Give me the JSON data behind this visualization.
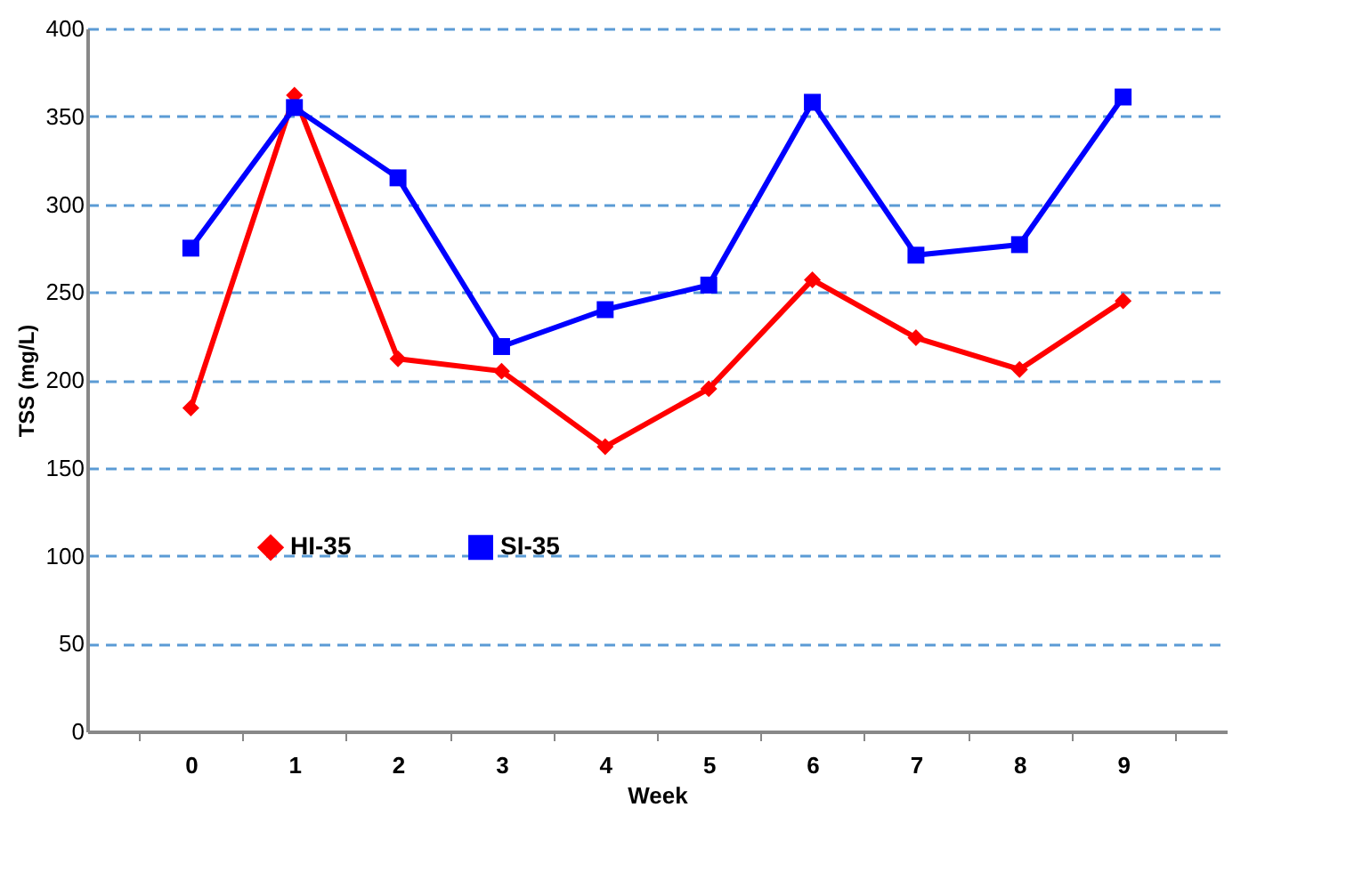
{
  "chart_data": {
    "type": "line",
    "xlabel": "Week",
    "ylabel": "TSS (mg/L)",
    "categories": [
      "0",
      "1",
      "2",
      "3",
      "4",
      "5",
      "6",
      "7",
      "8",
      "9"
    ],
    "series": [
      {
        "name": "HI-35",
        "color": "#ff0000",
        "marker": "diamond",
        "values": [
          184,
          362,
          212,
          205,
          162,
          195,
          257,
          224,
          206,
          245
        ]
      },
      {
        "name": "SI-35",
        "color": "#0000ff",
        "marker": "square",
        "values": [
          275,
          355,
          315,
          219,
          240,
          254,
          358,
          271,
          277,
          361
        ]
      }
    ],
    "ylim": [
      0,
      400
    ],
    "yticks": [
      0,
      50,
      100,
      150,
      200,
      250,
      300,
      350,
      400
    ],
    "grid": "y",
    "legend": "bottom",
    "line_style": "solid"
  }
}
